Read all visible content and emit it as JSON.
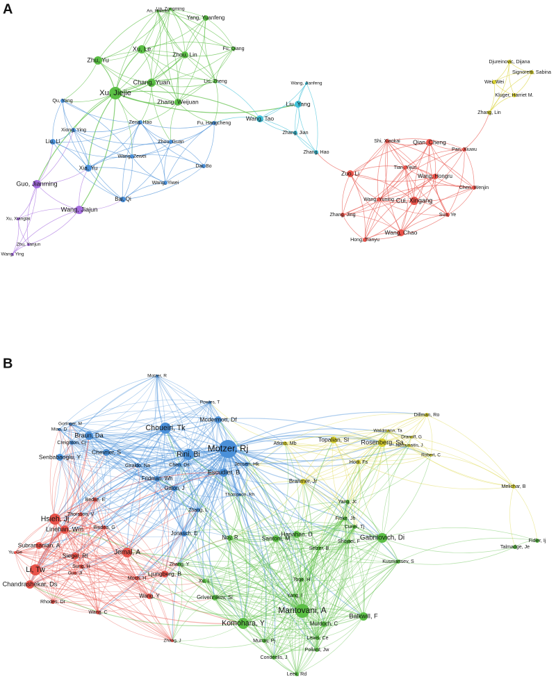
{
  "panels": [
    {
      "label": "A",
      "clusters": [
        {
          "color": "#5bbf45",
          "nodes": [
            "An, Haimin",
            "Lin, Zongming",
            "Yang, Yuanfeng",
            "Zhu, Yu",
            "Xu, Le",
            "Zhou, Lin",
            "Fu, Qiang",
            "Xu, Jiejie",
            "Chang, Yuan",
            "Liu, Zheng",
            "Zhang, Weijuan"
          ]
        },
        {
          "color": "#4a90d9",
          "nodes": [
            "Qu, Yang",
            "Zeng, Hao",
            "Fu, Hangcheng",
            "Xiong, Ying",
            "Zhou, Guan",
            "Liu, Li",
            "Wang, Zewei",
            "Xia, Yu",
            "Dai, Bo",
            "Wang, Yiwei",
            "Bai, Qi"
          ]
        },
        {
          "color": "#a66ee0",
          "nodes": [
            "Guo, Jianming",
            "Wang, Jiajun",
            "Xu, Xianglai",
            "Zhu, Yanjun",
            "Wang, Ying"
          ]
        },
        {
          "color": "#3fc1d9",
          "nodes": [
            "Wang, Jianfeng",
            "Liu, Yang",
            "Wang, Tao",
            "Zhang, Jian",
            "Zhang, Hao"
          ]
        },
        {
          "color": "#e8534a",
          "nodes": [
            "Shi, Xiaokai",
            "Qian, Cheng",
            "Pan, Xiuwu",
            "Tian, Yijun",
            "Zuo, Li",
            "Wang, Hongru",
            "Chen, Wenjin",
            "Wang, Yuning",
            "Cui, Xingang",
            "Zhang, Jing",
            "Sun, Ye",
            "Wang, Chao",
            "Hong, Tianyu"
          ]
        },
        {
          "color": "#d9d232",
          "nodes": [
            "Djureinovic, Dijana",
            "Signoretti, Sabina",
            "Wei, Wei",
            "Kluger, Harriet M.",
            "Zhang, Lin"
          ]
        }
      ]
    },
    {
      "label": "B",
      "clusters": [
        {
          "color": "#4a90d9",
          "nodes": [
            "Motzer, R",
            "Powles, T",
            "Goringer, M",
            "Miao, D",
            "Braun, Da",
            "Choueiri, Tk",
            "Mcdermott, Df",
            "Creighton, Cj",
            "Chevrier, S",
            "Motzer, Rj",
            "Rini, Bi",
            "Senbabaoglu, Y",
            "Giraldo, Na",
            "Chen, Ds",
            "Jensen, Hk",
            "Escudier, B",
            "Fridman, Wh",
            "Galon, J",
            "Thompson, Rh",
            "Zhang, L",
            "Jonasch, E"
          ]
        },
        {
          "color": "#d9d232",
          "nodes": [
            "Dillman, Ro",
            "Waldmann, Ta",
            "Rosenberg, Sa",
            "Atkins, Mb",
            "Topalian, Sl",
            "Hodi, Fs",
            "Dranoff, G",
            "Nemunaitis, J",
            "Robert, C",
            "Brahmer, Jr",
            "Melichar, B"
          ]
        },
        {
          "color": "#e8534a",
          "nodes": [
            "Bedke, E",
            "Thorsson, V",
            "Hsieh, Jj",
            "Linehan, Wm",
            "Bindea, G",
            "Subramanian, A",
            "Jemal, A",
            "Yu, Ge",
            "Siegel, Rl",
            "Sung, H",
            "Li, Tw",
            "Guo, Jl",
            "Chandrashekar, Ds",
            "Moch, H",
            "Ljungberg, B",
            "Wang, Y",
            "Rhodes, Dr",
            "Wang, C",
            "Zhang, J"
          ]
        },
        {
          "color": "#5bbf45",
          "nodes": [
            "Yang, Jc",
            "Finke, Jh",
            "Curiel, Tj",
            "Hanahan, D",
            "Gabrilovich, Di",
            "Shojaei, F",
            "Selzer, B",
            "Santoni, M",
            "Kusmartsev, S",
            "Noy, R",
            "Zhang, Y",
            "Xu, L",
            "Toge, H",
            "Grivennikov, Si",
            "Yang, I",
            "Mantovani, A",
            "Komohara, Y",
            "Balkwill, F",
            "Murdoch, C",
            "Lewis, Ce",
            "Murray, Pj",
            "Pollard, Jw",
            "Condeelis, J",
            "Leek, Rd",
            "Fidler, Ij",
            "Talmadge, Je"
          ]
        }
      ]
    }
  ]
}
